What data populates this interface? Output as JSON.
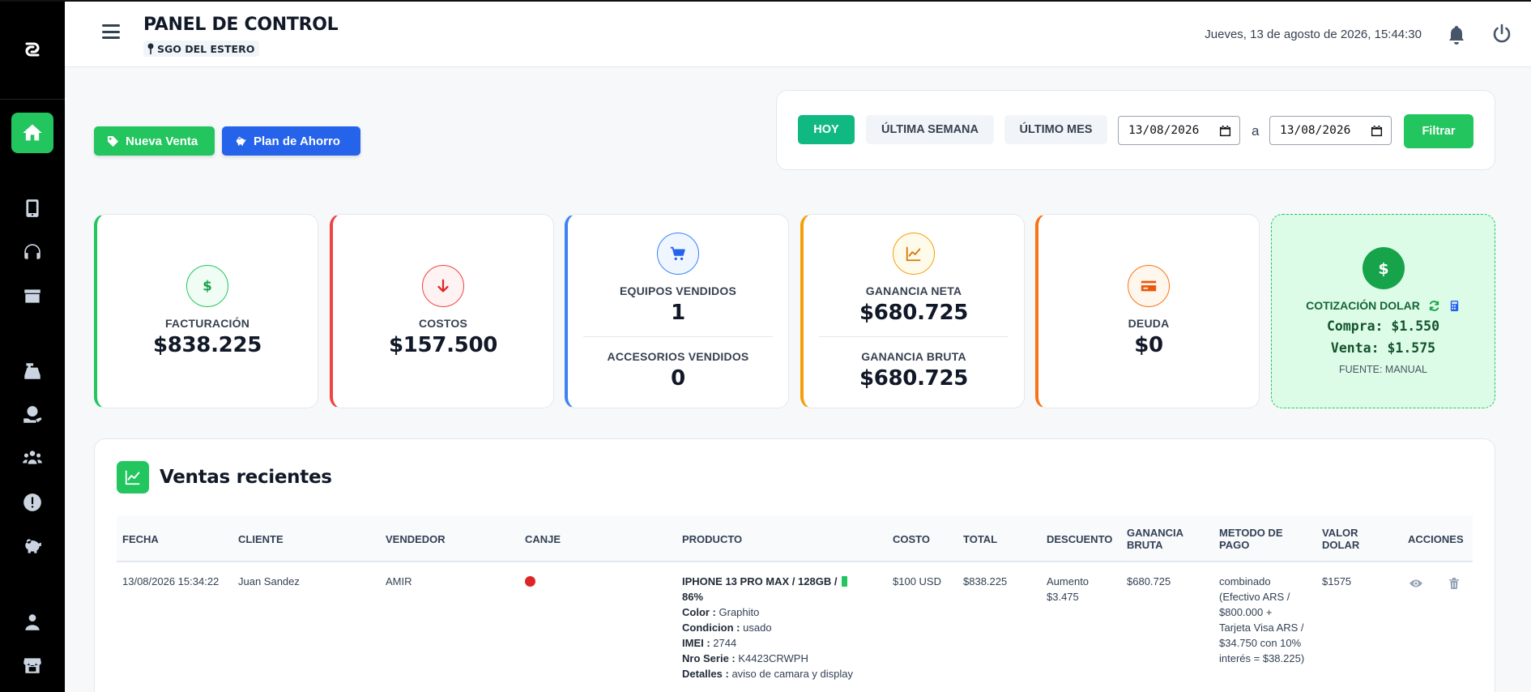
{
  "header": {
    "title": "PANEL DE CONTROL",
    "location": "SGO DEL ESTERO",
    "datetime": "Jueves, 13 de agosto de 2026, 15:44:30"
  },
  "actions": {
    "nueva_venta": "Nueva Venta",
    "plan_ahorro": "Plan de Ahorro"
  },
  "filters": {
    "hoy": "HOY",
    "semana": "ÚLTIMA SEMANA",
    "mes": "ÚLTIMO MES",
    "date_from": "13/08/2026",
    "separator": "a",
    "date_to": "13/08/2026",
    "filtrar": "Filtrar"
  },
  "cards": {
    "facturacion": {
      "label": "FACTURACIÓN",
      "value": "$838.225"
    },
    "costos": {
      "label": "COSTOS",
      "value": "$157.500"
    },
    "equipos": {
      "label": "EQUIPOS VENDIDOS",
      "value": "1"
    },
    "accesorios": {
      "label": "ACCESORIOS VENDIDOS",
      "value": "0"
    },
    "ganancia_neta": {
      "label": "GANANCIA NETA",
      "value": "$680.725"
    },
    "ganancia_bruta": {
      "label": "GANANCIA BRUTA",
      "value": "$680.725"
    },
    "deuda": {
      "label": "DEUDA",
      "value": "$0"
    },
    "dolar": {
      "title": "COTIZACIÓN DOLAR",
      "compra": "Compra: $1.550",
      "venta": "Venta: $1.575",
      "fuente": "FUENTE: MANUAL"
    }
  },
  "sales": {
    "title": "Ventas recientes",
    "columns": {
      "fecha": "FECHA",
      "cliente": "CLIENTE",
      "vendedor": "VENDEDOR",
      "canje": "CANJE",
      "producto": "PRODUCTO",
      "costo": "COSTO",
      "total": "TOTAL",
      "descuento": "DESCUENTO",
      "ganancia_1": "GANANCIA",
      "ganancia_2": "BRUTA",
      "metodo_1": "METODO DE",
      "metodo_2": "PAGO",
      "valor_1": "VALOR",
      "valor_2": "DOLAR",
      "acciones": "ACCIONES"
    },
    "rows": [
      {
        "fecha": "13/08/2026 15:34:22",
        "cliente": "Juan Sandez",
        "vendedor": "AMIR",
        "producto_title_1": "IPHONE 13 PRO MAX / 128GB /",
        "producto_title_2": "86%",
        "color_label": "Color :",
        "color": "Graphito",
        "condicion_label": "Condicion :",
        "condicion": "usado",
        "imei_label": "IMEI :",
        "imei": "2744",
        "serie_label": "Nro Serie :",
        "serie": "K4423CRWPH",
        "detalles_label": "Detalles :",
        "detalles": "aviso de camara y display",
        "costo": "$100 USD",
        "total": "$838.225",
        "descuento_1": "Aumento",
        "descuento_2": "$3.475",
        "ganancia": "$680.725",
        "metodo_1": "combinado",
        "metodo_2": "(Efectivo ARS /",
        "metodo_3": "$800.000 +",
        "metodo_4": "Tarjeta Visa ARS /",
        "metodo_5": "$34.750 con 10%",
        "metodo_6": "interés = $38.225)",
        "valor_dolar": "$1575"
      }
    ]
  }
}
